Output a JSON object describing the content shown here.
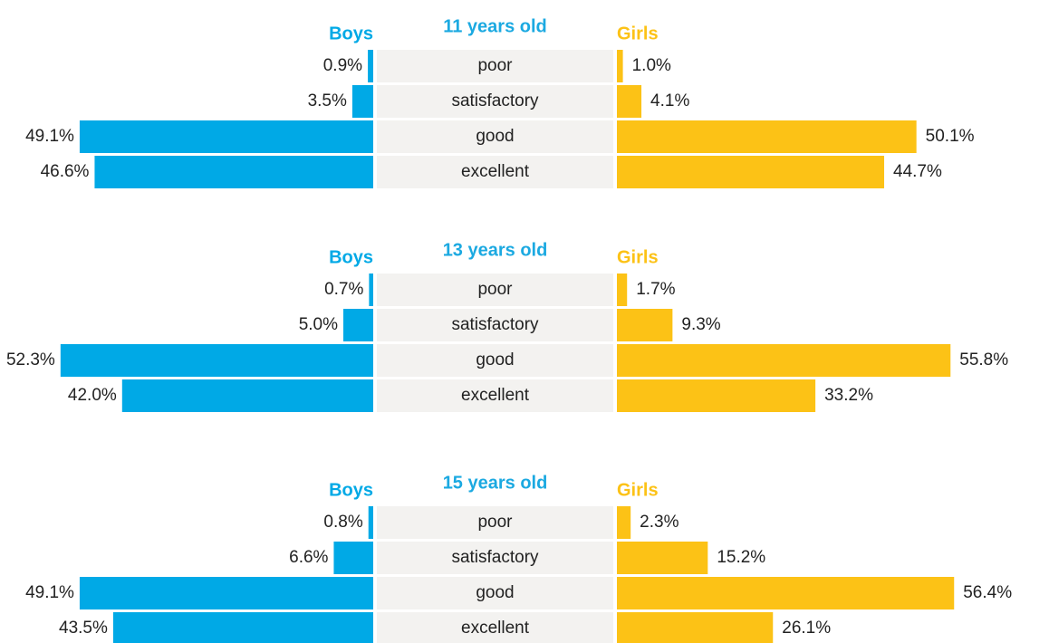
{
  "chart_data": [
    {
      "type": "butterfly",
      "title": "11 years old",
      "categories": [
        "poor",
        "satisfactory",
        "good",
        "excellent"
      ],
      "series": [
        {
          "name": "Boys",
          "color": "#00a9e6",
          "values": [
            0.9,
            3.5,
            49.1,
            46.6
          ],
          "value_labels": [
            "0.9%",
            "3.5%",
            "49.1%",
            "46.6%"
          ]
        },
        {
          "name": "Girls",
          "color": "#fcc216",
          "values": [
            1.0,
            4.1,
            50.1,
            44.7
          ],
          "value_labels": [
            "1.0%",
            "4.1%",
            "50.1%",
            "44.7%"
          ]
        }
      ]
    },
    {
      "type": "butterfly",
      "title": "13 years old",
      "categories": [
        "poor",
        "satisfactory",
        "good",
        "excellent"
      ],
      "series": [
        {
          "name": "Boys",
          "color": "#00a9e6",
          "values": [
            0.7,
            5.0,
            52.3,
            42.0
          ],
          "value_labels": [
            "0.7%",
            "5.0%",
            "52.3%",
            "42.0%"
          ]
        },
        {
          "name": "Girls",
          "color": "#fcc216",
          "values": [
            1.7,
            9.3,
            55.8,
            33.2
          ],
          "value_labels": [
            "1.7%",
            "9.3%",
            "55.8%",
            "33.2%"
          ]
        }
      ]
    },
    {
      "type": "butterfly",
      "title": "15 years old",
      "categories": [
        "poor",
        "satisfactory",
        "good",
        "excellent"
      ],
      "series": [
        {
          "name": "Boys",
          "color": "#00a9e6",
          "values": [
            0.8,
            6.6,
            49.1,
            43.5
          ],
          "value_labels": [
            "0.8%",
            "6.6%",
            "49.1%",
            "43.5%"
          ]
        },
        {
          "name": "Girls",
          "color": "#fcc216",
          "values": [
            2.3,
            15.2,
            56.4,
            26.1
          ],
          "value_labels": [
            "2.3%",
            "15.2%",
            "56.4%",
            "26.1%"
          ]
        }
      ]
    }
  ]
}
